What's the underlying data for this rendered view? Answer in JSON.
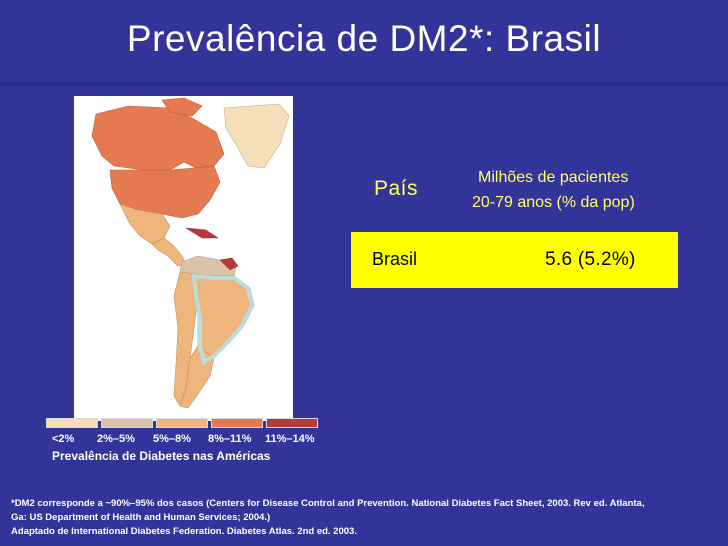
{
  "title": "Prevalência de DM2*: Brasil",
  "colors": {
    "background": "#33349a",
    "highlight": "#ffff00",
    "header_text": "#ffff66",
    "lt2": "#f5dfb8",
    "2to5": "#d9c3a9",
    "5to8": "#eeb67d",
    "8to11": "#e57a50",
    "11to14": "#b53a3a"
  },
  "legend": {
    "labels": [
      "<2%",
      "2%–5%",
      "5%–8%",
      "8%–11%",
      "11%–14%"
    ],
    "title": "Prevalência de Diabetes nas Américas"
  },
  "table": {
    "header_country": "País",
    "header_patients_line1": "Milhões de pacientes",
    "header_patients_line2": "20-79 anos (% da pop)",
    "row": {
      "country": "Brasil",
      "value": "5.6 (5.2%)"
    }
  },
  "footnote": {
    "line1": "*DM2 corresponde a ~90%–95%  dos casos (Centers for Disease Control and Prevention. National Diabetes Fact Sheet, 2003. Rev ed. Atlanta,",
    "line2": "Ga: US Department of Health and Human Services; 2004.)",
    "line3": "Adaptado de International Diabetes Federation. Diabetes Atlas. 2nd ed. 2003."
  }
}
